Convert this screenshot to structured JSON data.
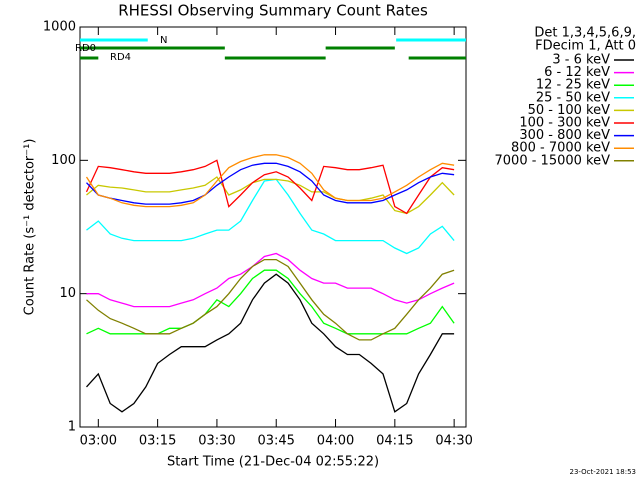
{
  "chart_data": {
    "type": "line",
    "title": "RHESSI Observing Summary Count Rates",
    "xlabel": "Start Time (21-Dec-04 02:55:22)",
    "ylabel": "Count Rate (s⁻¹ detector⁻¹)",
    "legend_header": [
      "Det 1,3,4,5,6,9,",
      "FDecim 1, Att 0"
    ],
    "footer": "23-Oct-2021 18:53",
    "log_y": true,
    "xlim": [
      "02:55:22",
      "04:33:00"
    ],
    "ylim": [
      1,
      1000
    ],
    "xticks": [
      "03:00",
      "03:15",
      "03:30",
      "03:45",
      "04:00",
      "04:15",
      "04:30"
    ],
    "yticks": [
      1,
      10,
      100,
      1000
    ],
    "x": [
      "02:57",
      "03:00",
      "03:03",
      "03:06",
      "03:09",
      "03:12",
      "03:15",
      "03:18",
      "03:21",
      "03:24",
      "03:27",
      "03:30",
      "03:33",
      "03:36",
      "03:39",
      "03:42",
      "03:45",
      "03:48",
      "03:51",
      "03:54",
      "03:57",
      "04:00",
      "04:03",
      "04:06",
      "04:09",
      "04:12",
      "04:15",
      "04:18",
      "04:21",
      "04:24",
      "04:27",
      "04:30"
    ],
    "series": [
      {
        "name": "3 - 6 keV",
        "color": "#000000",
        "values": [
          2,
          2.5,
          1.5,
          1.3,
          1.5,
          2,
          3,
          3.5,
          4,
          4,
          4,
          4.5,
          5,
          6,
          9,
          12,
          14,
          12,
          9,
          6,
          5,
          4,
          3.5,
          3.5,
          3,
          2.5,
          1.3,
          1.5,
          2.5,
          3.5,
          5,
          5
        ]
      },
      {
        "name": "6 - 12 keV",
        "color": "#ff00ff",
        "values": [
          10,
          10,
          9,
          8.5,
          8,
          8,
          8,
          8,
          8.5,
          9,
          10,
          11,
          13,
          14,
          16,
          19,
          20,
          18,
          15,
          13,
          12,
          12,
          11,
          11,
          11,
          10,
          9,
          8.5,
          9,
          10,
          11,
          12
        ]
      },
      {
        "name": "12 - 25 keV",
        "color": "#00ff00",
        "values": [
          5,
          5.5,
          5,
          5,
          5,
          5,
          5,
          5.5,
          5.5,
          6,
          7,
          9,
          8,
          10,
          13,
          15,
          15,
          13,
          10,
          8,
          6,
          5.5,
          5,
          5,
          5,
          5,
          5,
          5,
          5.5,
          6,
          8,
          6
        ]
      },
      {
        "name": "25 - 50 keV",
        "color": "#00ffff",
        "values": [
          30,
          35,
          28,
          26,
          25,
          25,
          25,
          25,
          25,
          26,
          28,
          30,
          30,
          35,
          50,
          70,
          72,
          55,
          40,
          30,
          28,
          25,
          25,
          25,
          25,
          25,
          22,
          20,
          22,
          28,
          32,
          25
        ]
      },
      {
        "name": "50 - 100 keV",
        "color": "#c8c800",
        "values": [
          55,
          65,
          63,
          62,
          60,
          58,
          58,
          58,
          60,
          62,
          65,
          75,
          55,
          60,
          68,
          72,
          72,
          70,
          65,
          58,
          58,
          52,
          50,
          50,
          52,
          55,
          42,
          40,
          45,
          55,
          68,
          55
        ]
      },
      {
        "name": "100 - 300 keV",
        "color": "#ff0000",
        "values": [
          58,
          90,
          88,
          85,
          82,
          80,
          80,
          80,
          82,
          85,
          90,
          100,
          45,
          55,
          68,
          78,
          82,
          75,
          62,
          50,
          90,
          88,
          85,
          85,
          88,
          92,
          45,
          40,
          55,
          75,
          88,
          85
        ]
      },
      {
        "name": "300 - 800 keV",
        "color": "#0000ff",
        "values": [
          68,
          55,
          52,
          50,
          48,
          47,
          47,
          47,
          48,
          50,
          55,
          65,
          75,
          85,
          92,
          95,
          95,
          90,
          82,
          70,
          55,
          50,
          48,
          48,
          48,
          50,
          55,
          60,
          68,
          75,
          80,
          78
        ]
      },
      {
        "name": "800 - 7000 keV",
        "color": "#ff8c00",
        "values": [
          75,
          55,
          52,
          48,
          46,
          45,
          45,
          45,
          46,
          48,
          55,
          70,
          88,
          98,
          105,
          110,
          110,
          105,
          95,
          80,
          60,
          52,
          50,
          50,
          50,
          52,
          58,
          65,
          75,
          85,
          95,
          92
        ]
      },
      {
        "name": "7000 - 15000 keV",
        "color": "#808000",
        "values": [
          9,
          7.5,
          6.5,
          6,
          5.5,
          5,
          5,
          5,
          5.5,
          6,
          7,
          8,
          10,
          13,
          16,
          18,
          18,
          16,
          12,
          9,
          7,
          6,
          5,
          4.5,
          4.5,
          5,
          5.5,
          7,
          9,
          11,
          14,
          15
        ]
      }
    ],
    "flags": [
      {
        "label": "N",
        "color": "#00ffff",
        "intervals": [
          [
            "02:55:22",
            "03:12:30"
          ],
          [
            "04:15:20",
            "04:33:00"
          ]
        ]
      },
      {
        "label": "RD0",
        "color": "#008000",
        "intervals": [
          [
            "02:55:22",
            "03:32:00"
          ],
          [
            "03:57:30",
            "04:15:00"
          ]
        ]
      },
      {
        "label": "RD4",
        "color": "#008000",
        "intervals": [
          [
            "02:55:22",
            "03:00:00"
          ],
          [
            "03:32:00",
            "03:57:30"
          ],
          [
            "04:18:30",
            "04:33:00"
          ]
        ]
      }
    ]
  }
}
